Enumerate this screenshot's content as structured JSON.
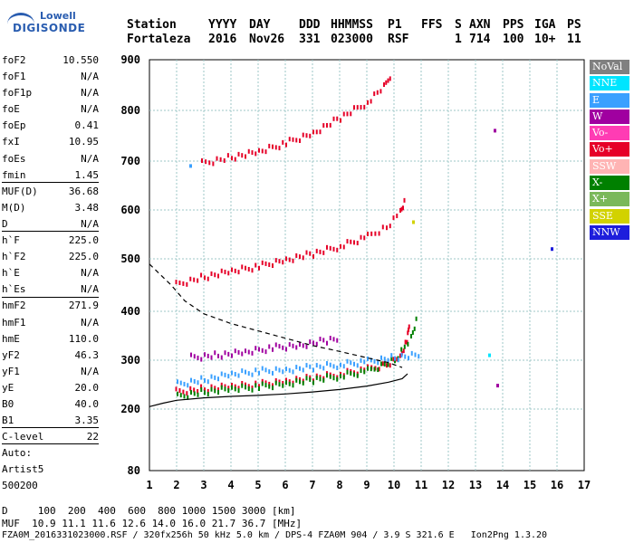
{
  "logo": {
    "line1": "Lowell",
    "line2": "DIGISONDE"
  },
  "header": {
    "labels": [
      "Station",
      "YYYY",
      "DAY",
      "DDD",
      "HHMMSS",
      "P1",
      "FFS",
      "S",
      "AXN",
      "PPS",
      "IGA",
      "PS"
    ],
    "values": [
      "Fortaleza",
      "2016",
      "Nov26",
      "331",
      "023000",
      "RSF",
      "1",
      "714",
      "100",
      "10+",
      "11"
    ]
  },
  "params": [
    {
      "label": "foF2",
      "value": "10.550"
    },
    {
      "label": "foF1",
      "value": "N/A"
    },
    {
      "label": "foF1p",
      "value": "N/A"
    },
    {
      "label": "foE",
      "value": "N/A"
    },
    {
      "label": "foEp",
      "value": "0.41"
    },
    {
      "label": "fxI",
      "value": "10.95"
    },
    {
      "label": "foEs",
      "value": "N/A"
    },
    {
      "label": "fmin",
      "value": "1.45"
    },
    {
      "label": "MUF(D)",
      "value": "36.68"
    },
    {
      "label": "M(D)",
      "value": "3.48"
    },
    {
      "label": "D",
      "value": "N/A"
    },
    {
      "label": "h`F",
      "value": "225.0"
    },
    {
      "label": "h`F2",
      "value": "225.0"
    },
    {
      "label": "h`E",
      "value": "N/A"
    },
    {
      "label": "h`Es",
      "value": "N/A"
    },
    {
      "label": "hmF2",
      "value": "271.9"
    },
    {
      "label": "hmF1",
      "value": "N/A"
    },
    {
      "label": "hmE",
      "value": "110.0"
    },
    {
      "label": "yF2",
      "value": "46.3"
    },
    {
      "label": "yF1",
      "value": "N/A"
    },
    {
      "label": "yE",
      "value": "20.0"
    },
    {
      "label": "B0",
      "value": "40.0"
    },
    {
      "label": "B1",
      "value": "3.35"
    },
    {
      "label": "C-level",
      "value": "22"
    },
    {
      "label": "Auto:",
      "value": ""
    },
    {
      "label": "Artist5",
      "value": ""
    },
    {
      "label": "500200",
      "value": ""
    }
  ],
  "legend": [
    {
      "label": "NoVal",
      "color": "#808080"
    },
    {
      "label": "NNE",
      "color": "#00e5ff"
    },
    {
      "label": "E",
      "color": "#3aa0ff"
    },
    {
      "label": "W",
      "color": "#a000a0"
    },
    {
      "label": "Vo-",
      "color": "#ff3cb4"
    },
    {
      "label": "Vo+",
      "color": "#e60028"
    },
    {
      "label": "SSW",
      "color": "#ffb4b4"
    },
    {
      "label": "X-",
      "color": "#008000"
    },
    {
      "label": "X+",
      "color": "#7ab85a"
    },
    {
      "label": "SSE",
      "color": "#d2d200"
    },
    {
      "label": "NNW",
      "color": "#1e1edc"
    }
  ],
  "footer": {
    "line1": "D     100  200  400  600  800 1000 1500 3000 [km]",
    "line2": "MUF  10.9 11.1 11.6 12.6 14.0 16.0 21.7 36.7 [MHz]",
    "line3": "FZA0M_2016331023000.RSF / 320fx256h 50 kHz 5.0 km / DPS-4 FZA0M 904 / 3.9 S 321.6 E   Ion2Png 1.3.20"
  },
  "chart_data": {
    "type": "scatter",
    "xlim": [
      1,
      17
    ],
    "ylim": [
      80,
      900
    ],
    "xticks": [
      1,
      2,
      3,
      4,
      5,
      6,
      7,
      8,
      9,
      10,
      11,
      12,
      13,
      14,
      15,
      16,
      17
    ],
    "yticks": [
      80,
      200,
      300,
      400,
      500,
      600,
      700,
      800,
      900
    ],
    "grid": true,
    "traces": [
      {
        "name": "trace-o1",
        "color": "#e60028",
        "points": [
          [
            1.95,
            240
          ],
          [
            3,
            246
          ],
          [
            4,
            250
          ],
          [
            5,
            255
          ],
          [
            6,
            262
          ],
          [
            7,
            268
          ],
          [
            8,
            276
          ],
          [
            9,
            286
          ],
          [
            9.7,
            296
          ],
          [
            10.2,
            310
          ],
          [
            10.45,
            345
          ],
          [
            10.55,
            385
          ]
        ]
      },
      {
        "name": "trace-o2",
        "color": "#e60028",
        "points": [
          [
            1.95,
            455
          ],
          [
            3,
            470
          ],
          [
            4,
            480
          ],
          [
            5,
            490
          ],
          [
            6,
            503
          ],
          [
            7,
            515
          ],
          [
            8,
            530
          ],
          [
            9,
            550
          ],
          [
            9.7,
            570
          ],
          [
            10.2,
            600
          ],
          [
            10.4,
            625
          ]
        ]
      },
      {
        "name": "trace-o3",
        "color": "#e60028",
        "points": [
          [
            2.9,
            700
          ],
          [
            4,
            712
          ],
          [
            5,
            722
          ],
          [
            6,
            740
          ],
          [
            7,
            760
          ],
          [
            8,
            790
          ],
          [
            9,
            820
          ],
          [
            9.6,
            850
          ],
          [
            9.9,
            880
          ]
        ]
      },
      {
        "name": "trace-x1",
        "color": "#008000",
        "points": [
          [
            2,
            230
          ],
          [
            3,
            240
          ],
          [
            4,
            245
          ],
          [
            5,
            250
          ],
          [
            6,
            257
          ],
          [
            7,
            264
          ],
          [
            8,
            272
          ],
          [
            9,
            282
          ],
          [
            10,
            305
          ],
          [
            10.6,
            350
          ],
          [
            10.85,
            395
          ]
        ]
      },
      {
        "name": "trace-e1",
        "color": "#3aa0ff",
        "points": [
          [
            2,
            255
          ],
          [
            3,
            265
          ],
          [
            4,
            275
          ],
          [
            5,
            282
          ],
          [
            6,
            285
          ],
          [
            7,
            290
          ],
          [
            8,
            295
          ],
          [
            9,
            302
          ],
          [
            10,
            310
          ],
          [
            11,
            315
          ]
        ]
      },
      {
        "name": "trace-w1",
        "color": "#a000a0",
        "points": [
          [
            2.5,
            310
          ],
          [
            3.5,
            315
          ],
          [
            4.5,
            320
          ],
          [
            5.5,
            330
          ],
          [
            6.5,
            335
          ],
          [
            7.5,
            345
          ],
          [
            8,
            350
          ]
        ]
      }
    ],
    "isolated_points": [
      {
        "name": "point-w-13-7",
        "x": 13.7,
        "y": 760,
        "color": "#a000a0"
      },
      {
        "name": "point-w-13-8",
        "x": 13.8,
        "y": 248,
        "color": "#a000a0"
      },
      {
        "name": "point-nnw-15-8",
        "x": 15.8,
        "y": 520,
        "color": "#1e1edc"
      },
      {
        "name": "point-sse-10-7",
        "x": 10.7,
        "y": 575,
        "color": "#d2d200"
      },
      {
        "name": "point-nne-13-5",
        "x": 13.5,
        "y": 310,
        "color": "#00e5ff"
      },
      {
        "name": "point-e-2-5",
        "x": 2.5,
        "y": 690,
        "color": "#3aa0ff"
      }
    ],
    "profile_curve": {
      "name": "profile-curve",
      "color": "#000000",
      "points": [
        [
          1.0,
          205
        ],
        [
          1.5,
          212
        ],
        [
          2,
          218
        ],
        [
          3,
          223
        ],
        [
          4,
          226
        ],
        [
          5,
          228
        ],
        [
          6,
          231
        ],
        [
          7,
          235
        ],
        [
          8,
          240
        ],
        [
          9,
          247
        ],
        [
          9.8,
          255
        ],
        [
          10.3,
          262
        ],
        [
          10.5,
          272
        ]
      ]
    },
    "dashed_curve": {
      "name": "dashed-curve",
      "color": "#000000",
      "points": [
        [
          1.0,
          490
        ],
        [
          1.4,
          470
        ],
        [
          1.8,
          450
        ],
        [
          2.3,
          420
        ],
        [
          3,
          395
        ],
        [
          4,
          375
        ],
        [
          5,
          360
        ],
        [
          6,
          345
        ],
        [
          7,
          330
        ],
        [
          8,
          318
        ],
        [
          9,
          305
        ],
        [
          9.8,
          295
        ],
        [
          10.3,
          285
        ]
      ]
    }
  }
}
